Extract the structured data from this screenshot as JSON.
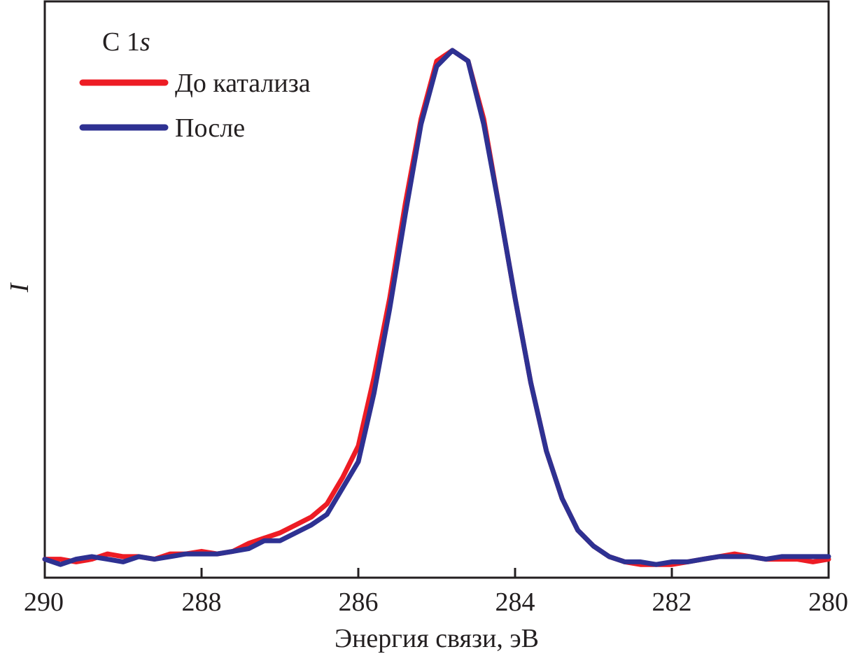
{
  "chart_data": {
    "type": "line",
    "title": "",
    "xlabel": "Энергия связи, эВ",
    "ylabel": "I",
    "xlim": [
      290,
      280
    ],
    "x_reversed": true,
    "ylim": [
      0,
      1
    ],
    "x_ticks": [
      "290",
      "288",
      "286",
      "284",
      "282",
      "280"
    ],
    "x_tick_values": [
      290,
      288,
      286,
      284,
      282,
      280
    ],
    "grid": false,
    "legend": {
      "placement": "top-left",
      "heading_main": "C 1",
      "heading_italic": "s"
    },
    "series": [
      {
        "name": "До катализа",
        "color": "#ed1c24",
        "x": [
          290.0,
          289.8,
          289.6,
          289.4,
          289.2,
          289.0,
          288.8,
          288.6,
          288.4,
          288.2,
          288.0,
          287.8,
          287.6,
          287.4,
          287.2,
          287.0,
          286.8,
          286.6,
          286.4,
          286.2,
          286.0,
          285.8,
          285.6,
          285.4,
          285.2,
          285.0,
          284.8,
          284.6,
          284.4,
          284.2,
          284.0,
          283.8,
          283.6,
          283.4,
          283.2,
          283.0,
          282.8,
          282.6,
          282.4,
          282.2,
          282.0,
          281.8,
          281.6,
          281.4,
          281.2,
          281.0,
          280.8,
          280.6,
          280.4,
          280.2,
          280.0
        ],
        "y": [
          0.035,
          0.035,
          0.03,
          0.035,
          0.045,
          0.04,
          0.04,
          0.035,
          0.045,
          0.045,
          0.05,
          0.045,
          0.05,
          0.065,
          0.075,
          0.085,
          0.1,
          0.115,
          0.14,
          0.19,
          0.25,
          0.38,
          0.53,
          0.71,
          0.87,
          0.98,
          1.0,
          0.98,
          0.87,
          0.7,
          0.53,
          0.37,
          0.24,
          0.15,
          0.09,
          0.06,
          0.04,
          0.03,
          0.025,
          0.025,
          0.025,
          0.03,
          0.035,
          0.04,
          0.045,
          0.04,
          0.035,
          0.035,
          0.035,
          0.03,
          0.035
        ]
      },
      {
        "name": "После",
        "color": "#2e3192",
        "x": [
          290.0,
          289.8,
          289.6,
          289.4,
          289.2,
          289.0,
          288.8,
          288.6,
          288.4,
          288.2,
          288.0,
          287.8,
          287.6,
          287.4,
          287.2,
          287.0,
          286.8,
          286.6,
          286.4,
          286.2,
          286.0,
          285.8,
          285.6,
          285.4,
          285.2,
          285.0,
          284.8,
          284.6,
          284.4,
          284.2,
          284.0,
          283.8,
          283.6,
          283.4,
          283.2,
          283.0,
          282.8,
          282.6,
          282.4,
          282.2,
          282.0,
          281.8,
          281.6,
          281.4,
          281.2,
          281.0,
          280.8,
          280.6,
          280.4,
          280.2,
          280.0
        ],
        "y": [
          0.035,
          0.025,
          0.035,
          0.04,
          0.035,
          0.03,
          0.04,
          0.035,
          0.04,
          0.045,
          0.045,
          0.045,
          0.05,
          0.055,
          0.07,
          0.07,
          0.085,
          0.1,
          0.12,
          0.17,
          0.22,
          0.35,
          0.51,
          0.69,
          0.86,
          0.97,
          1.0,
          0.98,
          0.86,
          0.7,
          0.53,
          0.37,
          0.24,
          0.15,
          0.09,
          0.06,
          0.04,
          0.03,
          0.03,
          0.025,
          0.03,
          0.03,
          0.035,
          0.04,
          0.04,
          0.04,
          0.035,
          0.04,
          0.04,
          0.04,
          0.04
        ]
      }
    ]
  }
}
